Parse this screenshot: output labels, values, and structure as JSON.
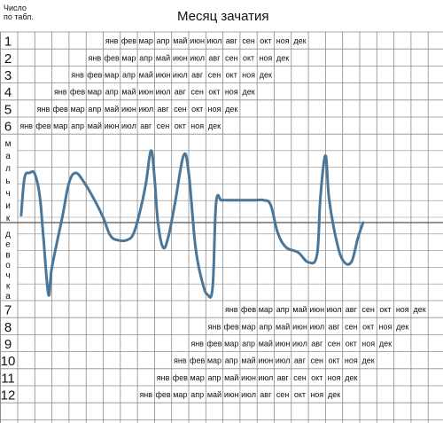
{
  "header": {
    "corner_label_line1": "Число",
    "corner_label_line2": "по табл.",
    "title": "Месяц зачатия"
  },
  "colors": {
    "curve": "#4a7699",
    "grid": "#8c8c8c",
    "text": "#111111"
  },
  "chart_data": {
    "type": "line",
    "title": "Месяц зачатия",
    "row_labels": [
      "1",
      "2",
      "3",
      "4",
      "5",
      "6",
      "7",
      "8",
      "9",
      "10",
      "11",
      "12"
    ],
    "months": [
      "янв",
      "фев",
      "мар",
      "апр",
      "май",
      "июн",
      "июл",
      "авг",
      "сен",
      "окт",
      "ноя",
      "дек"
    ],
    "top_rows": [
      {
        "label": "1",
        "start_col": 5
      },
      {
        "label": "2",
        "start_col": 4
      },
      {
        "label": "3",
        "start_col": 3
      },
      {
        "label": "4",
        "start_col": 2
      },
      {
        "label": "5",
        "start_col": 1
      },
      {
        "label": "6",
        "start_col": 0
      }
    ],
    "bottom_rows": [
      {
        "label": "7",
        "start_col": 12
      },
      {
        "label": "8",
        "start_col": 11
      },
      {
        "label": "9",
        "start_col": 10
      },
      {
        "label": "10",
        "start_col": 9
      },
      {
        "label": "11",
        "start_col": 8
      },
      {
        "label": "12",
        "start_col": 7
      }
    ],
    "axis_labels": {
      "upper": "мальчик",
      "lower": "девочка"
    },
    "curve": {
      "x_unit": "table column",
      "y_unit": "amplitude (+1 = мальчик, -1 = девочка)",
      "points": [
        [
          0,
          0.15
        ],
        [
          0.2,
          0.9
        ],
        [
          0.5,
          1.0
        ],
        [
          0.8,
          0.98
        ],
        [
          1.1,
          0.5
        ],
        [
          1.3,
          -0.3
        ],
        [
          1.6,
          -1.45
        ],
        [
          1.8,
          -0.9
        ],
        [
          2.4,
          0.1
        ],
        [
          2.8,
          0.8
        ],
        [
          3.2,
          1.0
        ],
        [
          3.7,
          0.8
        ],
        [
          4.3,
          0.45
        ],
        [
          4.8,
          0.1
        ],
        [
          5.2,
          -0.25
        ],
        [
          5.6,
          -0.35
        ],
        [
          6.2,
          -0.35
        ],
        [
          6.6,
          -0.2
        ],
        [
          7.0,
          0.3
        ],
        [
          7.3,
          0.8
        ],
        [
          7.6,
          1.45
        ],
        [
          7.8,
          0.9
        ],
        [
          8.0,
          0
        ],
        [
          8.3,
          -0.5
        ],
        [
          8.6,
          -0.3
        ],
        [
          9.0,
          0.4
        ],
        [
          9.5,
          1.35
        ],
        [
          9.8,
          1.0
        ],
        [
          10.2,
          -0.5
        ],
        [
          10.6,
          -1.2
        ],
        [
          10.9,
          -1.45
        ],
        [
          11.2,
          -1.3
        ],
        [
          11.4,
          0.4
        ],
        [
          11.7,
          0.45
        ],
        [
          12.0,
          0.45
        ],
        [
          13.0,
          0.45
        ],
        [
          13.6,
          0.45
        ],
        [
          14.2,
          0.45
        ],
        [
          14.6,
          0.35
        ],
        [
          15.0,
          -0.2
        ],
        [
          15.5,
          -0.5
        ],
        [
          16.2,
          -0.6
        ],
        [
          16.8,
          -0.8
        ],
        [
          17.3,
          -0.65
        ],
        [
          17.5,
          0.5
        ],
        [
          17.8,
          1.35
        ],
        [
          18.0,
          0.5
        ],
        [
          18.4,
          -0.3
        ],
        [
          18.8,
          -0.75
        ],
        [
          19.3,
          -0.8
        ],
        [
          19.7,
          -0.3
        ],
        [
          20.0,
          0
        ]
      ]
    }
  }
}
